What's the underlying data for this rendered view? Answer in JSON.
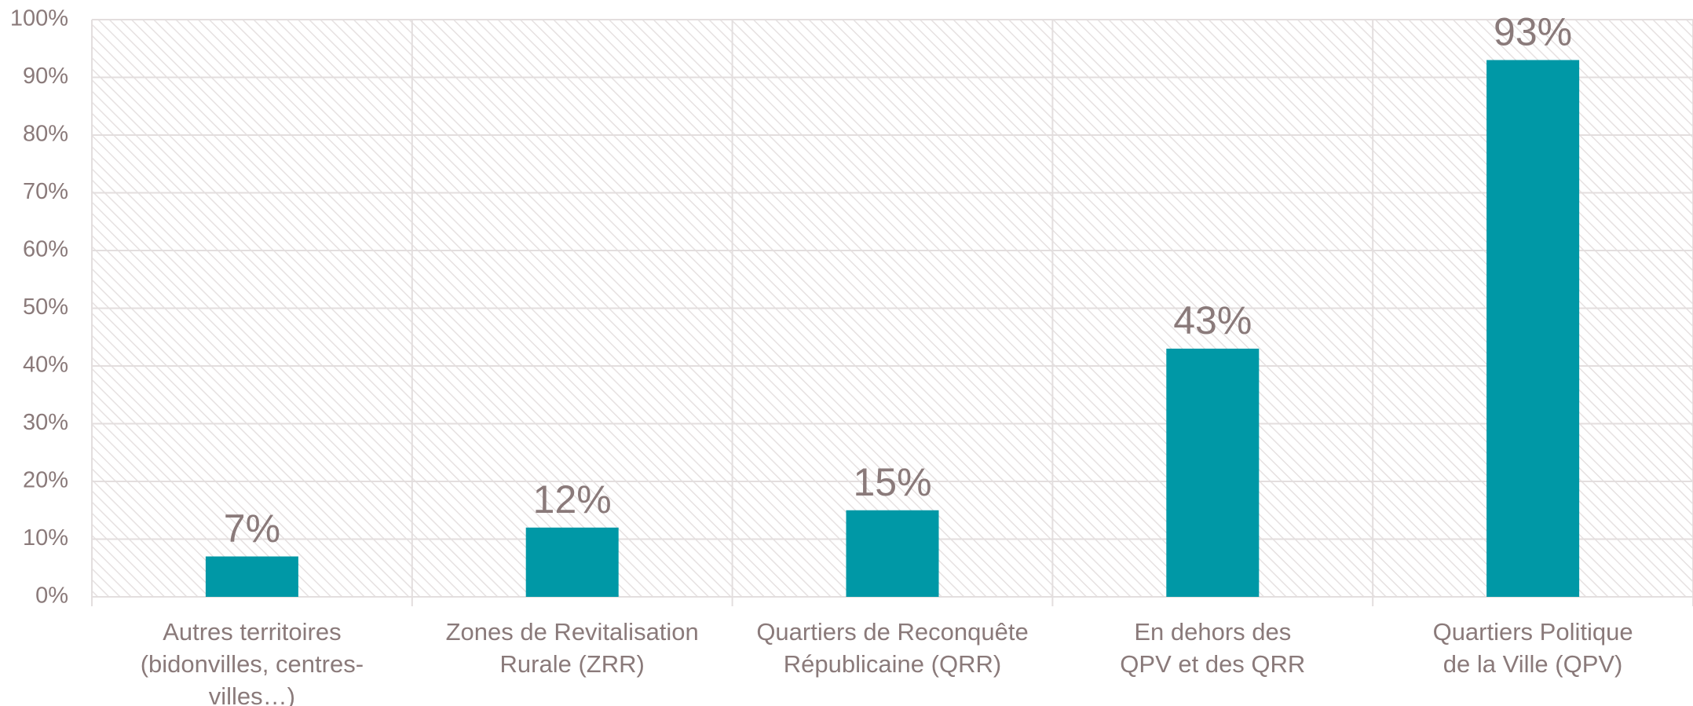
{
  "chart_data": {
    "type": "bar",
    "categories": [
      "Autres territoires (bidonvilles, centres-villes…)",
      "Zones de Revitalisation Rurale (ZRR)",
      "Quartiers de Reconquête Républicaine (QRR)",
      "En dehors des QPV et des QRR",
      "Quartiers Politique de la Ville (QPV)"
    ],
    "values": [
      7,
      12,
      15,
      43,
      93
    ],
    "value_labels": [
      "7%",
      "12%",
      "15%",
      "43%",
      "93%"
    ],
    "color": "#0098a6",
    "ylim": [
      0,
      100
    ],
    "yticks": [
      {
        "value": 0,
        "label": "0%"
      },
      {
        "value": 10,
        "label": "10%"
      },
      {
        "value": 20,
        "label": "20%"
      },
      {
        "value": 30,
        "label": "30%"
      },
      {
        "value": 40,
        "label": "40%"
      },
      {
        "value": 50,
        "label": "50%"
      },
      {
        "value": 60,
        "label": "60%"
      },
      {
        "value": 70,
        "label": "70%"
      },
      {
        "value": 80,
        "label": "80%"
      },
      {
        "value": 90,
        "label": "90%"
      },
      {
        "value": 100,
        "label": "100%"
      }
    ],
    "grid": true
  }
}
